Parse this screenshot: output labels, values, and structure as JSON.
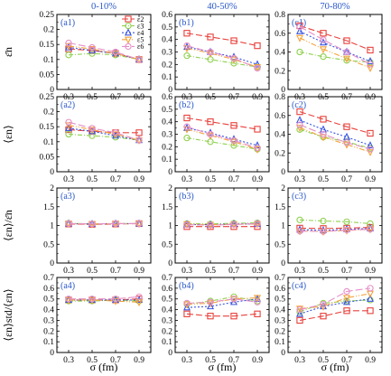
{
  "figure": {
    "column_titles": [
      "0-10%",
      "40-50%",
      "70-80%"
    ],
    "xlabel": "σ (fm)",
    "row_ylabels": [
      "ε̄n",
      "⟨εn⟩",
      "⟨εn⟩/ε̄n",
      "⟨εn⟩std/⟨εn⟩"
    ]
  },
  "chart_data": {
    "type": "line",
    "x": [
      0.3,
      0.5,
      0.7,
      0.9
    ],
    "xticks": [
      "0.3",
      "0.5",
      "0.7",
      "0.9"
    ],
    "series_style": [
      {
        "name": "ε2",
        "color": "#e8413c",
        "marker": "square",
        "dash": "7,3"
      },
      {
        "name": "ε3",
        "color": "#8fd14f",
        "marker": "circle",
        "dash": "5,2,1,2"
      },
      {
        "name": "ε4",
        "color": "#3b55e0",
        "marker": "triangle",
        "dash": "2,2"
      },
      {
        "name": "ε5",
        "color": "#f5a23a",
        "marker": "triangle-down",
        "dash": "6,2,1,2,1,2"
      },
      {
        "name": "ε6",
        "color": "#e58fc8",
        "marker": "circle",
        "dash": "8,3"
      }
    ],
    "legend": {
      "panel": "a1",
      "position": "top-right"
    },
    "panels": [
      {
        "label": "(a1)",
        "row": 0,
        "col": 0,
        "ylim": [
          0,
          0.25
        ],
        "yticks": [
          "0",
          "0.05",
          "0.1",
          "0.15",
          "0.2",
          "0.25"
        ],
        "series": [
          [
            0.135,
            0.13,
            0.12,
            0.1
          ],
          [
            0.115,
            0.12,
            0.115,
            0.1
          ],
          [
            0.14,
            0.13,
            0.12,
            0.1
          ],
          [
            0.145,
            0.135,
            0.12,
            0.1
          ],
          [
            0.155,
            0.14,
            0.125,
            0.1
          ]
        ]
      },
      {
        "label": "(b1)",
        "row": 0,
        "col": 1,
        "ylim": [
          0,
          0.6
        ],
        "yticks": [
          "0",
          "0.1",
          "0.2",
          "0.3",
          "0.4",
          "0.5",
          "0.6"
        ],
        "series": [
          [
            0.45,
            0.42,
            0.39,
            0.35
          ],
          [
            0.27,
            0.24,
            0.21,
            0.18
          ],
          [
            0.34,
            0.3,
            0.26,
            0.2
          ],
          [
            0.33,
            0.29,
            0.24,
            0.18
          ],
          [
            0.35,
            0.3,
            0.25,
            0.17
          ]
        ]
      },
      {
        "label": "(c1)",
        "row": 0,
        "col": 2,
        "ylim": [
          0,
          0.8
        ],
        "yticks": [
          "0",
          "0.2",
          "0.4",
          "0.6",
          "0.8"
        ],
        "series": [
          [
            0.68,
            0.6,
            0.52,
            0.42
          ],
          [
            0.4,
            0.35,
            0.31,
            0.29
          ],
          [
            0.62,
            0.5,
            0.4,
            0.3
          ],
          [
            0.55,
            0.43,
            0.33,
            0.23
          ],
          [
            0.67,
            0.53,
            0.4,
            0.27
          ]
        ]
      },
      {
        "label": "(a2)",
        "row": 1,
        "col": 0,
        "ylim": [
          0,
          0.25
        ],
        "yticks": [
          "0",
          "0.05",
          "0.1",
          "0.15",
          "0.2",
          "0.25"
        ],
        "series": [
          [
            0.14,
            0.135,
            0.13,
            0.13
          ],
          [
            0.125,
            0.12,
            0.115,
            0.105
          ],
          [
            0.145,
            0.135,
            0.12,
            0.105
          ],
          [
            0.155,
            0.14,
            0.125,
            0.105
          ],
          [
            0.165,
            0.145,
            0.13,
            0.105
          ]
        ]
      },
      {
        "label": "(b2)",
        "row": 1,
        "col": 1,
        "ylim": [
          0,
          0.6
        ],
        "yticks": [
          "0",
          "0.1",
          "0.2",
          "0.3",
          "0.4",
          "0.5",
          "0.6"
        ],
        "series": [
          [
            0.43,
            0.4,
            0.37,
            0.34
          ],
          [
            0.27,
            0.24,
            0.21,
            0.18
          ],
          [
            0.35,
            0.31,
            0.26,
            0.21
          ],
          [
            0.34,
            0.29,
            0.24,
            0.18
          ],
          [
            0.36,
            0.3,
            0.25,
            0.19
          ]
        ]
      },
      {
        "label": "(c2)",
        "row": 1,
        "col": 2,
        "ylim": [
          0,
          0.8
        ],
        "yticks": [
          "0",
          "0.2",
          "0.4",
          "0.6",
          "0.8"
        ],
        "series": [
          [
            0.64,
            0.56,
            0.48,
            0.41
          ],
          [
            0.45,
            0.37,
            0.32,
            0.25
          ],
          [
            0.55,
            0.45,
            0.37,
            0.28
          ],
          [
            0.47,
            0.37,
            0.29,
            0.21
          ],
          [
            0.5,
            0.4,
            0.31,
            0.24
          ]
        ]
      },
      {
        "label": "(a3)",
        "row": 2,
        "col": 0,
        "ylim": [
          0,
          2
        ],
        "yticks": [
          "0",
          "0.5",
          "1",
          "1.5",
          "2"
        ],
        "series": [
          [
            1.04,
            1.03,
            1.04,
            1.05
          ],
          [
            1.06,
            1.04,
            1.05,
            1.05
          ],
          [
            1.05,
            1.04,
            1.05,
            1.05
          ],
          [
            1.05,
            1.04,
            1.05,
            1.05
          ],
          [
            1.05,
            1.04,
            1.05,
            1.05
          ]
        ]
      },
      {
        "label": "(b3)",
        "row": 2,
        "col": 1,
        "ylim": [
          0,
          2
        ],
        "yticks": [
          "0",
          "0.5",
          "1",
          "1.5",
          "2"
        ],
        "series": [
          [
            0.97,
            0.97,
            0.97,
            0.97
          ],
          [
            1.05,
            1.04,
            1.06,
            1.07
          ],
          [
            1.03,
            1.02,
            1.04,
            1.04
          ],
          [
            1.04,
            1.02,
            1.03,
            1.04
          ],
          [
            1.02,
            1.01,
            1.03,
            1.05
          ]
        ]
      },
      {
        "label": "(c3)",
        "row": 2,
        "col": 2,
        "ylim": [
          0,
          2
        ],
        "yticks": [
          "0",
          "0.5",
          "1",
          "1.5",
          "2"
        ],
        "series": [
          [
            0.93,
            0.92,
            0.93,
            0.95
          ],
          [
            1.15,
            1.12,
            1.1,
            1.05
          ],
          [
            0.89,
            0.87,
            0.9,
            0.92
          ],
          [
            0.85,
            0.84,
            0.87,
            0.9
          ],
          [
            0.85,
            0.84,
            0.88,
            0.9
          ]
        ]
      },
      {
        "label": "(a4)",
        "row": 3,
        "col": 0,
        "ylim": [
          0,
          0.7
        ],
        "yticks": [
          "0",
          "0.1",
          "0.2",
          "0.3",
          "0.4",
          "0.5",
          "0.6",
          "0.7"
        ],
        "series": [
          [
            0.49,
            0.49,
            0.49,
            0.5
          ],
          [
            0.48,
            0.48,
            0.49,
            0.48
          ],
          [
            0.49,
            0.49,
            0.49,
            0.49
          ],
          [
            0.49,
            0.49,
            0.48,
            0.47
          ],
          [
            0.5,
            0.5,
            0.5,
            0.52
          ]
        ]
      },
      {
        "label": "(b4)",
        "row": 3,
        "col": 1,
        "ylim": [
          0,
          0.7
        ],
        "yticks": [
          "0",
          "0.1",
          "0.2",
          "0.3",
          "0.4",
          "0.5",
          "0.6",
          "0.7"
        ],
        "series": [
          [
            0.36,
            0.34,
            0.34,
            0.36
          ],
          [
            0.45,
            0.48,
            0.52,
            0.48
          ],
          [
            0.42,
            0.43,
            0.47,
            0.5
          ],
          [
            0.45,
            0.46,
            0.5,
            0.51
          ],
          [
            0.46,
            0.47,
            0.5,
            0.47
          ]
        ]
      },
      {
        "label": "(c4)",
        "row": 3,
        "col": 2,
        "ylim": [
          0,
          0.7
        ],
        "yticks": [
          "0",
          "0.1",
          "0.2",
          "0.3",
          "0.4",
          "0.5",
          "0.6",
          "0.7"
        ],
        "series": [
          [
            0.3,
            0.34,
            0.39,
            0.39
          ],
          [
            0.38,
            0.46,
            0.48,
            0.49
          ],
          [
            0.36,
            0.43,
            0.47,
            0.5
          ],
          [
            0.41,
            0.43,
            0.51,
            0.55
          ],
          [
            0.4,
            0.45,
            0.57,
            0.6
          ]
        ]
      }
    ]
  }
}
